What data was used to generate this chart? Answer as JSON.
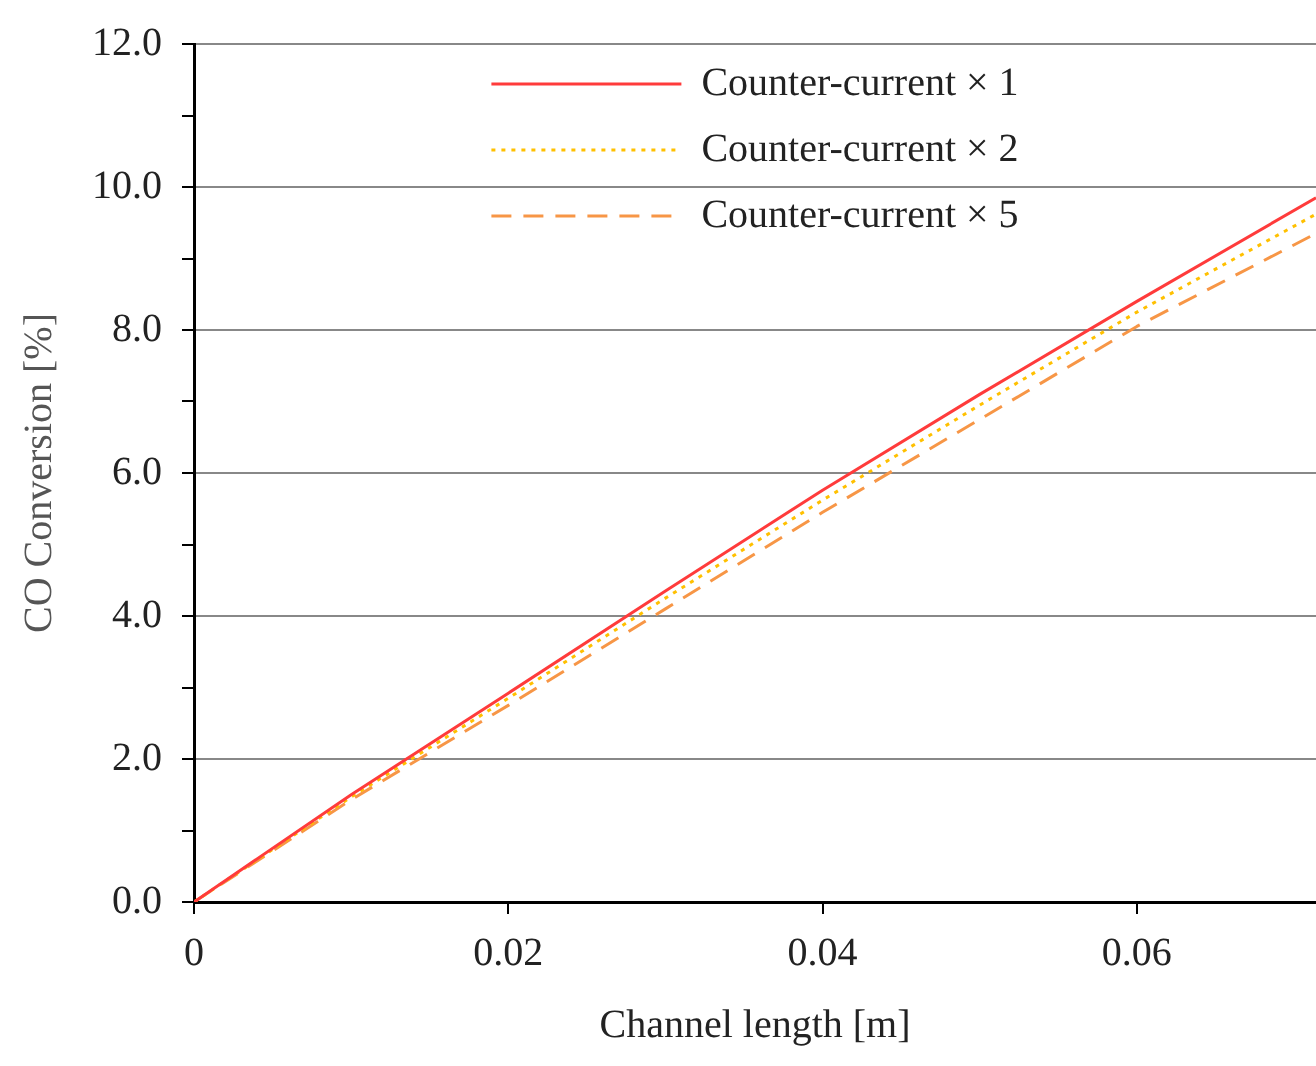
{
  "chart_data": {
    "type": "line",
    "xlabel": "Channel length [m]",
    "ylabel": "CO Conversion [%]",
    "xlim": [
      0,
      0.0714
    ],
    "xticks": [
      0,
      0.02,
      0.04,
      0.06
    ],
    "ylim": [
      0,
      12
    ],
    "yticks": [
      {
        "value": 0,
        "label": "0.0"
      },
      {
        "value": 1,
        "label": null
      },
      {
        "value": 2,
        "label": "2.0"
      },
      {
        "value": 3,
        "label": null
      },
      {
        "value": 4,
        "label": "4.0"
      },
      {
        "value": 5,
        "label": null
      },
      {
        "value": 6,
        "label": "6.0"
      },
      {
        "value": 7,
        "label": null
      },
      {
        "value": 8,
        "label": "8.0"
      },
      {
        "value": 9,
        "label": null
      },
      {
        "value": 10,
        "label": "10.0"
      },
      {
        "value": 11,
        "label": null
      },
      {
        "value": 12,
        "label": "12.0"
      }
    ],
    "grid": "y",
    "legend": "top",
    "marker": "none",
    "series": [
      {
        "name": "Counter-current × 1",
        "color": "#ff3b3b",
        "line_style": "solid",
        "x": [
          0,
          0.01,
          0.02,
          0.03,
          0.04,
          0.05,
          0.06,
          0.0714
        ],
        "values": [
          0,
          1.5,
          2.92,
          4.35,
          5.76,
          7.1,
          8.4,
          9.85
        ]
      },
      {
        "name": "Counter-current × 2",
        "color": "#ffc000",
        "line_style": "dotted",
        "x": [
          0,
          0.01,
          0.02,
          0.03,
          0.04,
          0.05,
          0.06,
          0.0714
        ],
        "values": [
          0,
          1.47,
          2.85,
          4.25,
          5.62,
          6.95,
          8.25,
          9.62
        ]
      },
      {
        "name": "Counter-current × 5",
        "color": "#f79646",
        "line_style": "dashed",
        "x": [
          0,
          0.01,
          0.02,
          0.03,
          0.04,
          0.05,
          0.06,
          0.0714
        ],
        "values": [
          0,
          1.43,
          2.75,
          4.1,
          5.45,
          6.75,
          8.05,
          9.35
        ]
      }
    ]
  }
}
